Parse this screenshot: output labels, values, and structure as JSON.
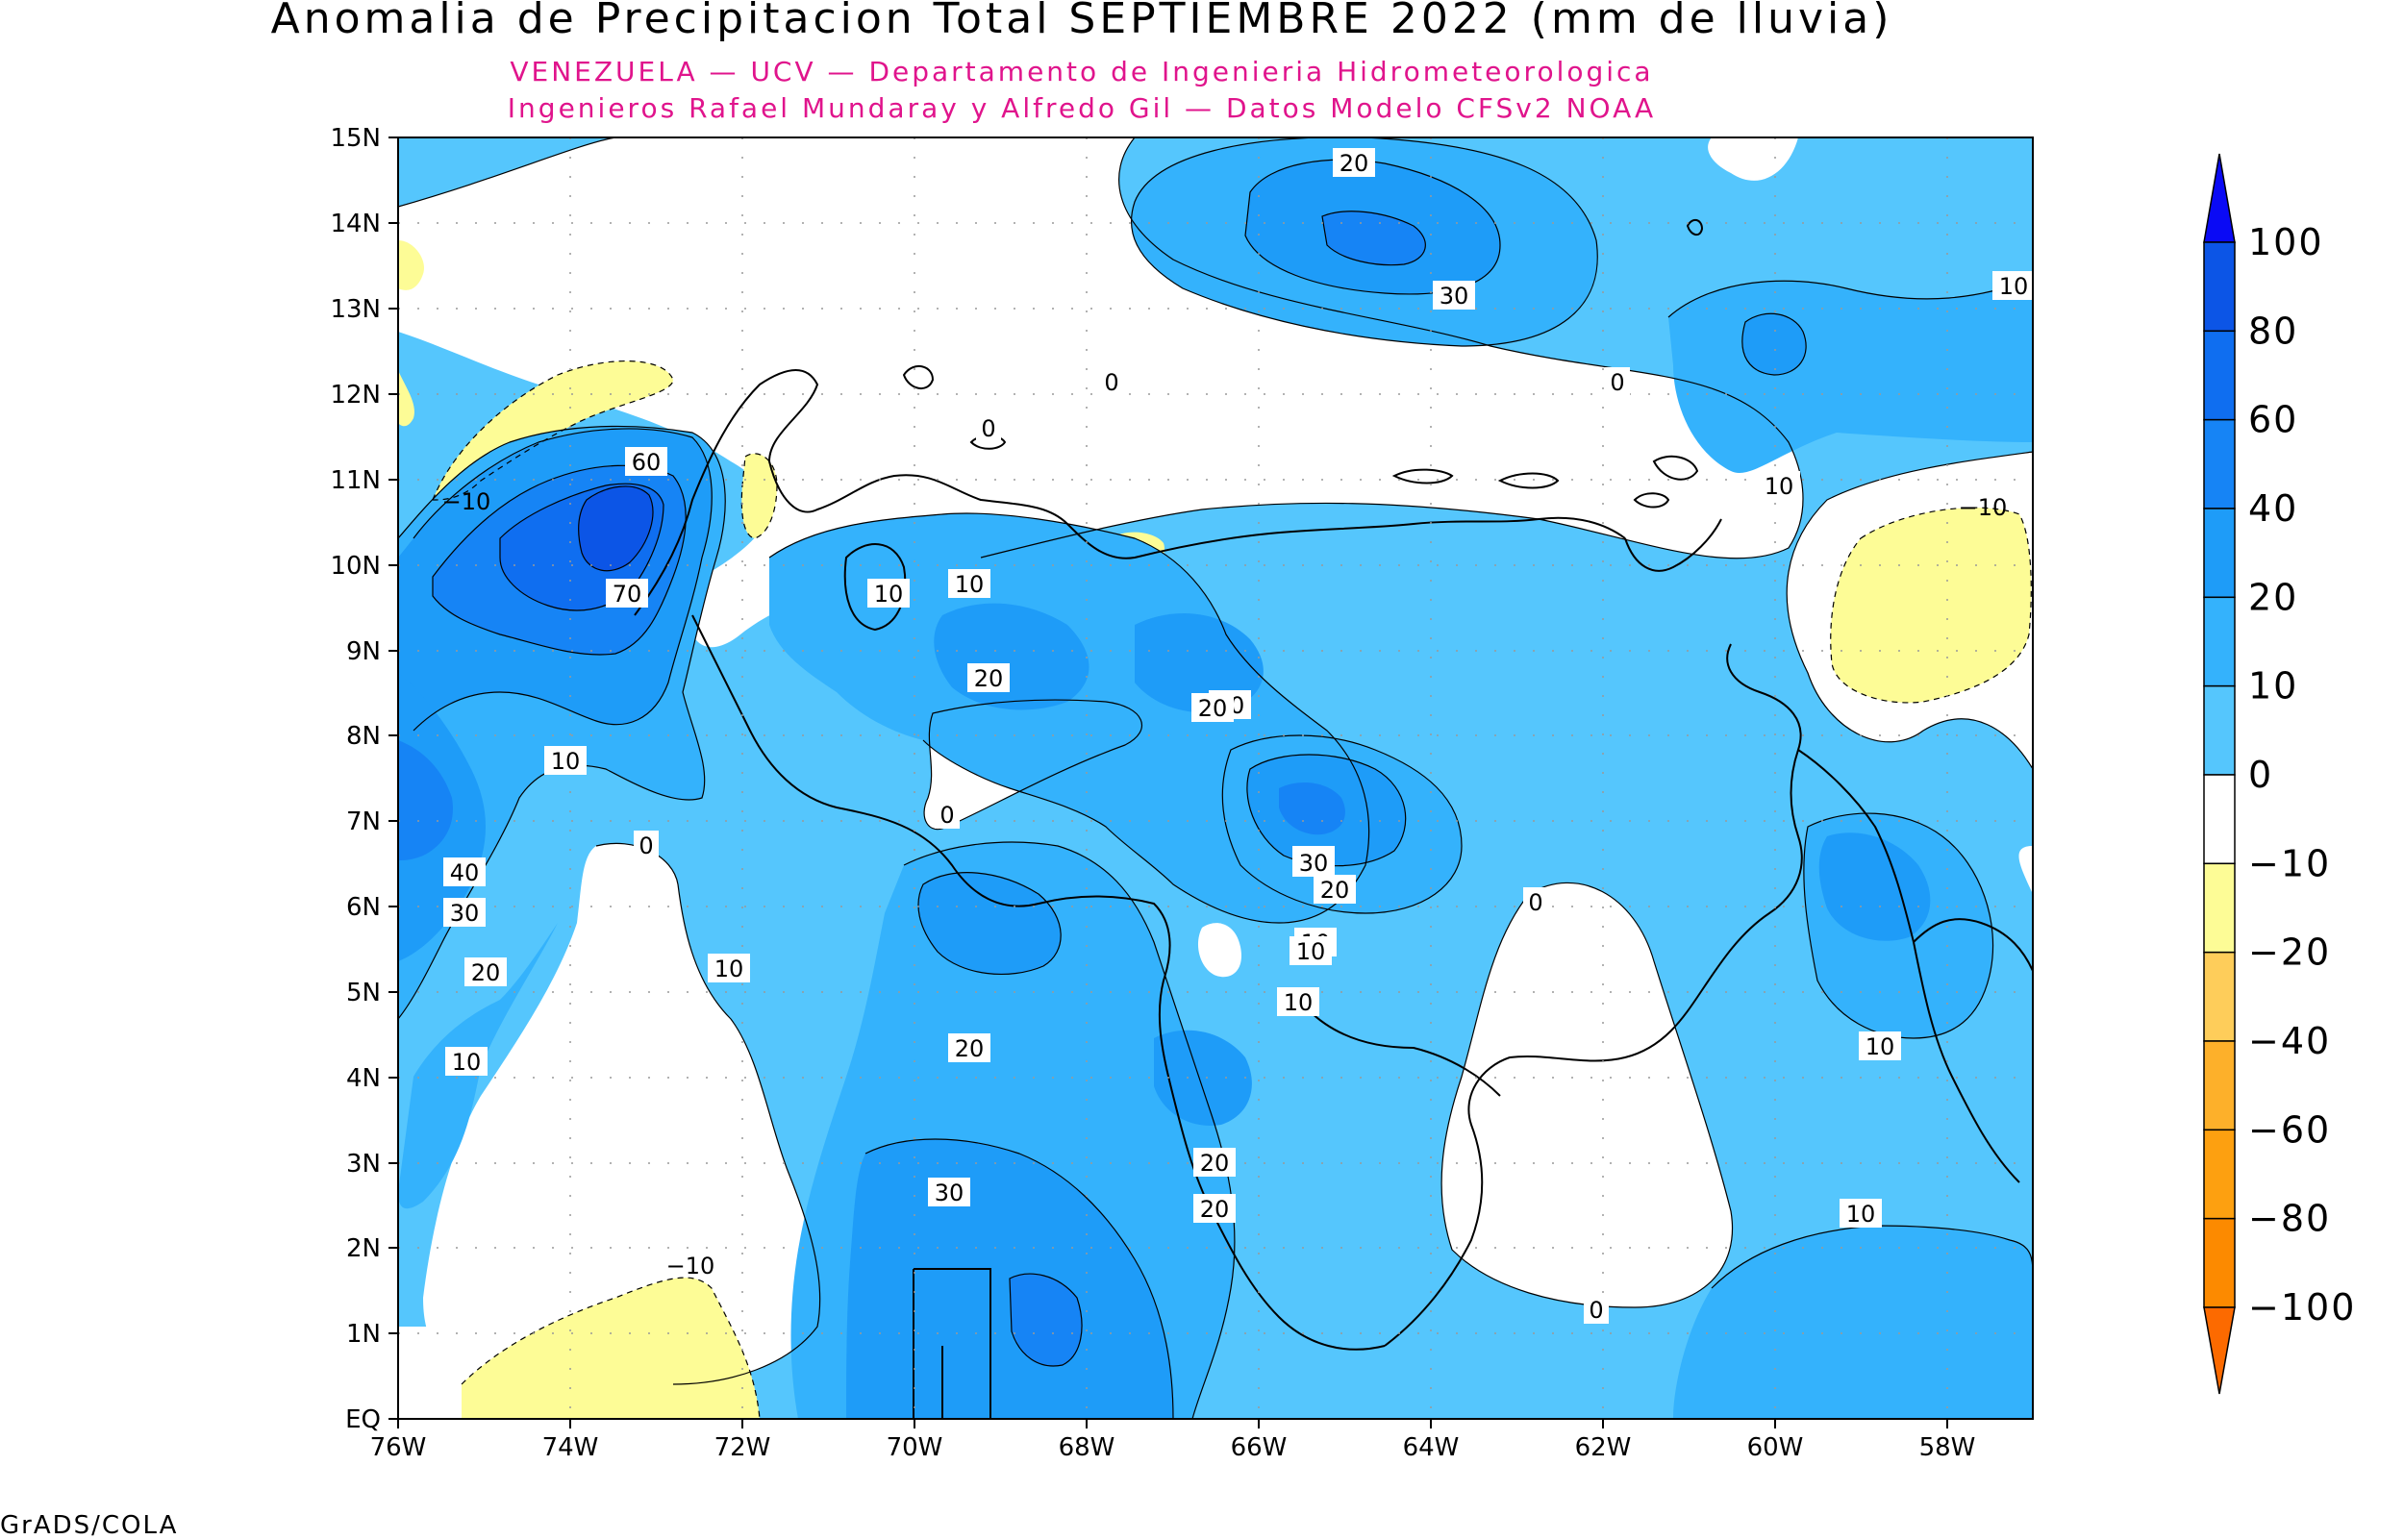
{
  "title": "Anomalia de Precipitacion Total SEPTIEMBRE 2022 (mm de lluvia)",
  "subtitle_1": "VENEZUELA — UCV — Departamento de Ingenieria Hidrometeorologica",
  "subtitle_2": "Ingenieros Rafael Mundaray y Alfredo Gil — Datos Modelo CFSv2 NOAA",
  "footer": "GrADS/COLA",
  "axes": {
    "lat_ticks": [
      "15N",
      "14N",
      "13N",
      "12N",
      "11N",
      "10N",
      "9N",
      "8N",
      "7N",
      "6N",
      "5N",
      "4N",
      "3N",
      "2N",
      "1N",
      "EQ"
    ],
    "lon_ticks": [
      "76W",
      "74W",
      "72W",
      "70W",
      "68W",
      "66W",
      "64W",
      "62W",
      "60W",
      "58W"
    ]
  },
  "legend": {
    "levels": [
      {
        "label": "100",
        "color": "#0a0af5"
      },
      {
        "label": "80",
        "color": "#0c55e6"
      },
      {
        "label": "60",
        "color": "#0f6ef0"
      },
      {
        "label": "40",
        "color": "#1684f5"
      },
      {
        "label": "20",
        "color": "#1e9cf8"
      },
      {
        "label": "10",
        "color": "#34b2fc"
      },
      {
        "label": "0",
        "color": "#55c6fd"
      },
      {
        "label": "−10",
        "color": "#ffffff"
      },
      {
        "label": "−20",
        "color": "#fdfc96"
      },
      {
        "label": "−40",
        "color": "#fecd5a"
      },
      {
        "label": "−60",
        "color": "#fdb02a"
      },
      {
        "label": "−80",
        "color": "#fda010"
      },
      {
        "label": "−100",
        "color": "#fc8a00"
      }
    ],
    "bottom_color": "#fc6a00"
  },
  "contour_labels": [
    "20",
    "30",
    "10",
    "0",
    "0",
    "0",
    "10",
    "−10",
    "−10",
    "60",
    "70",
    "10",
    "10",
    "10",
    "20",
    "20",
    "10",
    "0",
    "40",
    "30",
    "20",
    "10",
    "0",
    "10",
    "20",
    "30",
    "20",
    "10",
    "10",
    "0",
    "20",
    "20",
    "20",
    "30",
    "20",
    "−10",
    "0",
    "10",
    "10"
  ],
  "colors": {
    "c_lt0": "#ffffff",
    "c_0_10": "#55c6fd",
    "c_10_20": "#34b2fc",
    "c_20_40": "#1e9cf8",
    "c_40_60": "#1684f5",
    "c_60_80": "#0f6ef0",
    "c_80_100": "#0c55e6",
    "c_neg": "#fdfc96"
  }
}
